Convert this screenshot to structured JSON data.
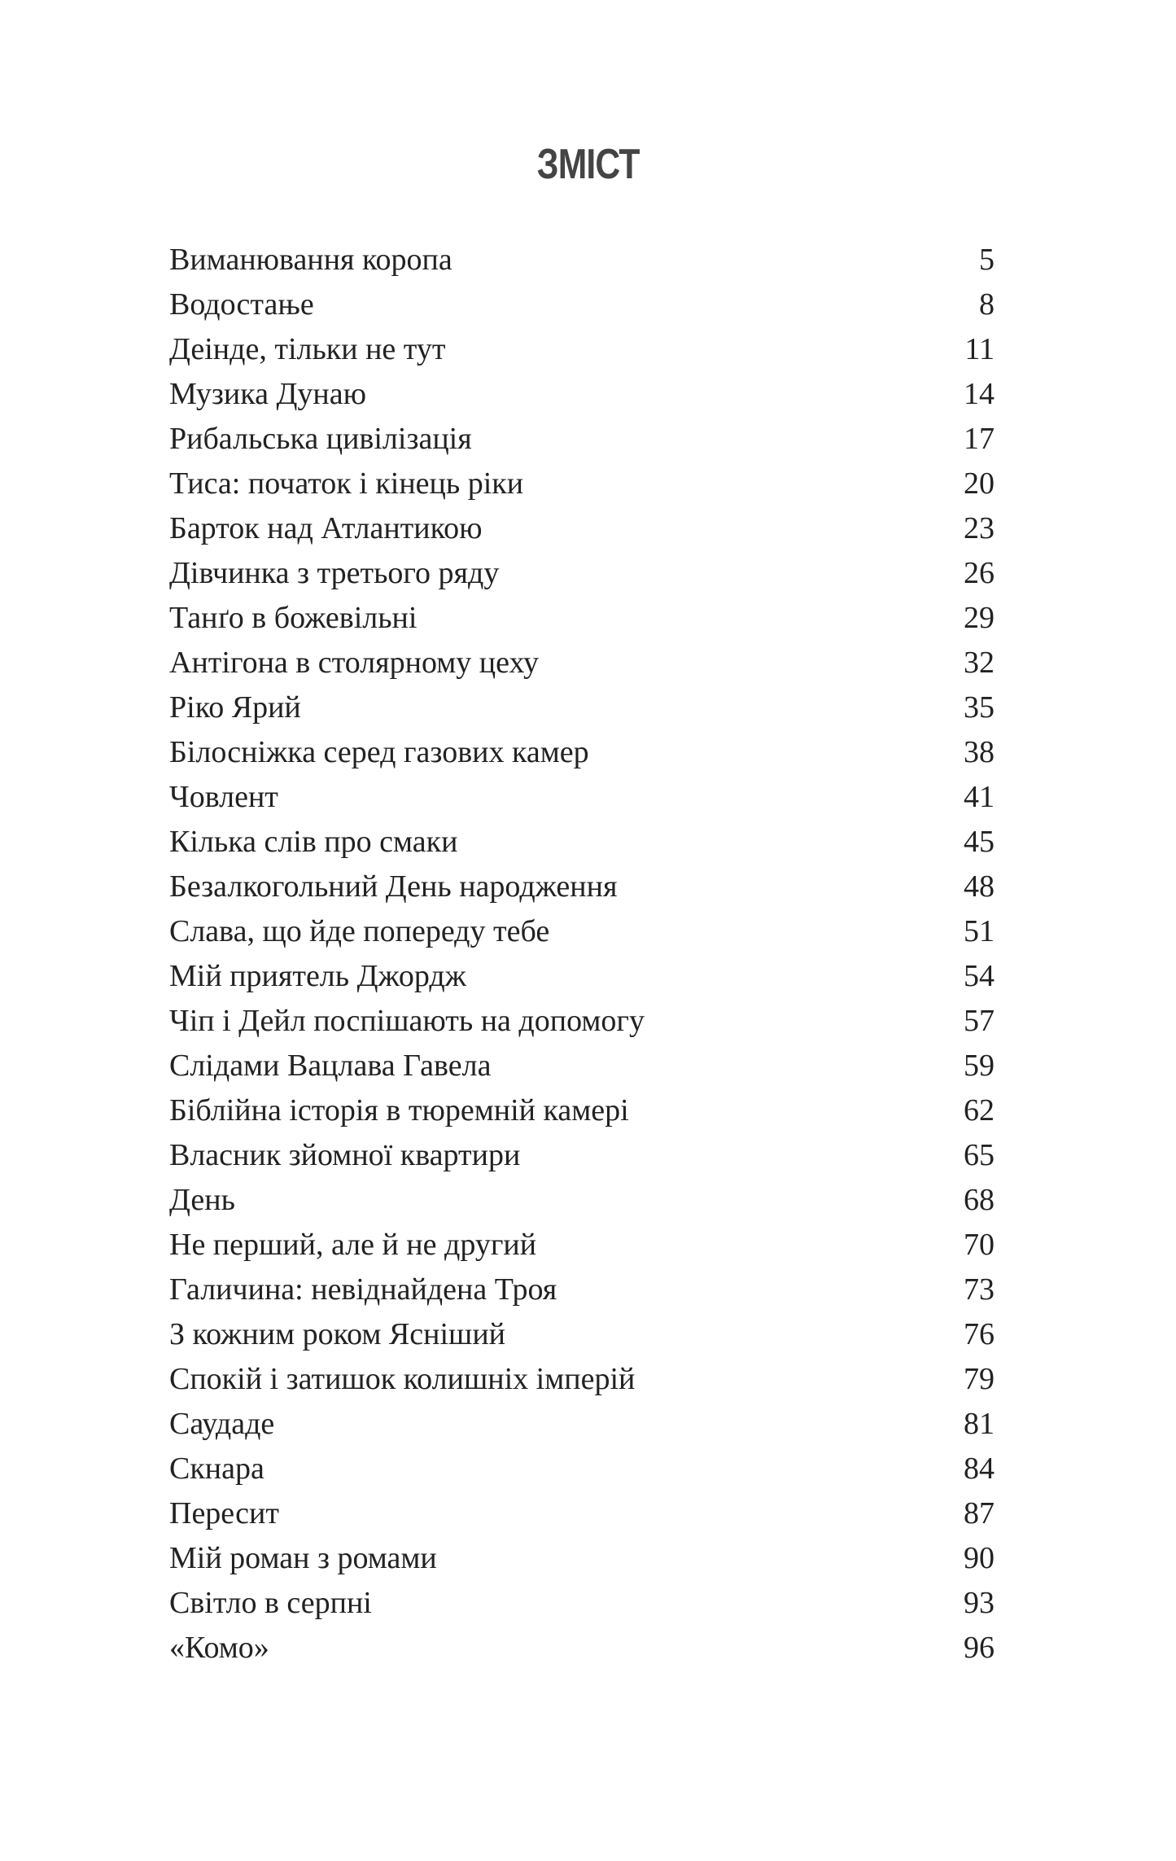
{
  "title": "ЗМІСТ",
  "entries": [
    {
      "title": "Виманювання коропа",
      "page": "5"
    },
    {
      "title": "Водостање",
      "page": "8"
    },
    {
      "title": "Деінде, тільки не тут",
      "page": "11"
    },
    {
      "title": "Музика Дунаю",
      "page": "14"
    },
    {
      "title": "Рибальська цивілізація",
      "page": "17"
    },
    {
      "title": "Тиса: початок і кінець ріки",
      "page": "20"
    },
    {
      "title": "Барток над Атлантикою",
      "page": "23"
    },
    {
      "title": "Дівчинка з третього ряду",
      "page": "26"
    },
    {
      "title": "Танґо в божевільні",
      "page": "29"
    },
    {
      "title": "Антігона в столярному цеху",
      "page": "32"
    },
    {
      "title": "Ріко Ярий",
      "page": "35"
    },
    {
      "title": "Білосніжка серед газових камер",
      "page": "38"
    },
    {
      "title": "Човлент",
      "page": "41"
    },
    {
      "title": "Кілька слів про смаки",
      "page": "45"
    },
    {
      "title": "Безалкогольний День народження",
      "page": "48"
    },
    {
      "title": "Слава, що йде попереду тебе",
      "page": "51"
    },
    {
      "title": "Мій приятель Джордж",
      "page": "54"
    },
    {
      "title": "Чіп і Дейл поспішають на допомогу",
      "page": "57"
    },
    {
      "title": "Слідами Вацлава Гавела",
      "page": "59"
    },
    {
      "title": "Біблійна історія в тюремній камері",
      "page": "62"
    },
    {
      "title": "Власник зйомної квартири",
      "page": "65"
    },
    {
      "title": "День",
      "page": "68"
    },
    {
      "title": "Не перший, але й не другий",
      "page": "70"
    },
    {
      "title": "Галичина: невіднайдена Троя",
      "page": "73"
    },
    {
      "title": "З кожним роком Ясніший",
      "page": "76"
    },
    {
      "title": "Спокій і затишок колишніх імперій",
      "page": "79"
    },
    {
      "title": "Саудаде",
      "page": "81"
    },
    {
      "title": "Скнара",
      "page": "84"
    },
    {
      "title": "Пересит",
      "page": "87"
    },
    {
      "title": "Мій роман з ромами",
      "page": "90"
    },
    {
      "title": "Світло в серпні",
      "page": "93"
    },
    {
      "title": "«Комо»",
      "page": "96"
    }
  ]
}
